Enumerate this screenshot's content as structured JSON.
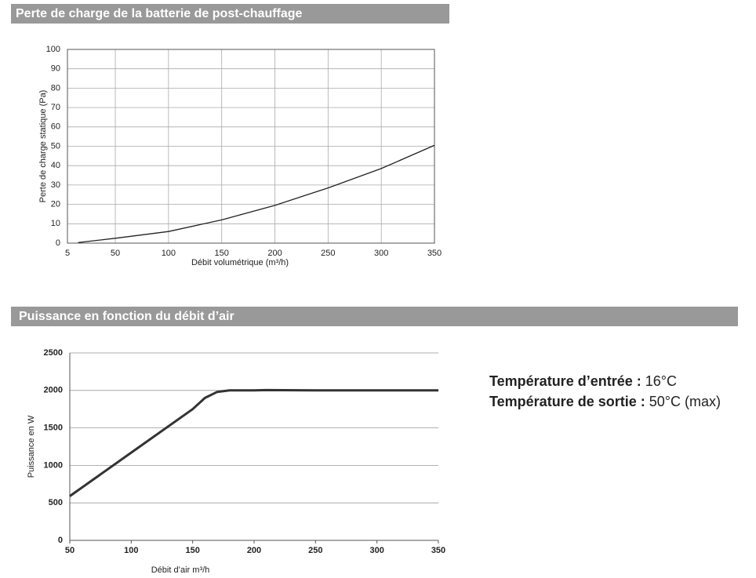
{
  "chart_data": [
    {
      "type": "line",
      "title": "Perte de charge de la batterie de post-chauffage",
      "x_label": "Débit volumétrique (m³/h)",
      "y_label": "Perte de charge statique (Pa)",
      "x": [
        15,
        50,
        100,
        150,
        200,
        250,
        300,
        350
      ],
      "values": [
        0.3,
        2.5,
        6,
        12,
        19.5,
        28.5,
        38.5,
        50.5
      ],
      "color": "#222222",
      "xlim": [
        5,
        350
      ],
      "xticks": [
        5,
        50,
        100,
        150,
        200,
        250,
        300,
        350
      ],
      "ylim": [
        0,
        100
      ],
      "yticks": [
        0,
        10,
        20,
        30,
        40,
        50,
        60,
        70,
        80,
        90,
        100
      ],
      "grid": "both"
    },
    {
      "type": "line",
      "title": "Puissance en fonction du débit d’air",
      "x_label": "Débit d’air m³/h",
      "y_label": "Puissance en W",
      "x": [
        50,
        100,
        150,
        160,
        170,
        180,
        200,
        210,
        250,
        300,
        350
      ],
      "values": [
        590,
        1170,
        1750,
        1900,
        1980,
        2000,
        2000,
        2005,
        2000,
        2000,
        2000
      ],
      "color": "#333333",
      "xlim": [
        50,
        350
      ],
      "xticks": [
        50,
        100,
        150,
        200,
        250,
        300,
        350
      ],
      "ylim": [
        0,
        2500
      ],
      "yticks": [
        0,
        500,
        1000,
        1500,
        2000,
        2500
      ],
      "grid": "y"
    }
  ],
  "side_notes": [
    {
      "label": "Température d’entrée :",
      "value": "16°C"
    },
    {
      "label": "Température de sortie :",
      "value": "50°C (max)"
    }
  ]
}
